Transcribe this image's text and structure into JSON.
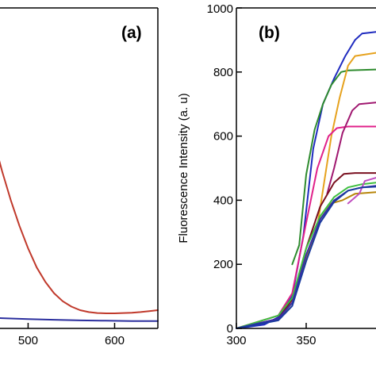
{
  "chart_data": [
    {
      "type": "line",
      "panel_label": "(a)",
      "xlabel": "",
      "ylabel": "",
      "xlim": [
        440,
        650
      ],
      "ylim": [
        0,
        1
      ],
      "x_ticks": [
        500,
        600
      ],
      "x_tick_labels": [
        "500",
        "600"
      ],
      "grid": false,
      "series": [
        {
          "color": "#c0392b",
          "points": [
            [
              440,
              0.8
            ],
            [
              450,
              0.7
            ],
            [
              460,
              0.59
            ],
            [
              470,
              0.49
            ],
            [
              480,
              0.4
            ],
            [
              490,
              0.32
            ],
            [
              500,
              0.25
            ],
            [
              510,
              0.19
            ],
            [
              520,
              0.145
            ],
            [
              530,
              0.11
            ],
            [
              540,
              0.085
            ],
            [
              550,
              0.068
            ],
            [
              560,
              0.057
            ],
            [
              570,
              0.051
            ],
            [
              580,
              0.048
            ],
            [
              590,
              0.047
            ],
            [
              600,
              0.047
            ],
            [
              610,
              0.048
            ],
            [
              620,
              0.049
            ],
            [
              630,
              0.051
            ],
            [
              640,
              0.054
            ],
            [
              650,
              0.057
            ]
          ]
        },
        {
          "color": "#2b2f9e",
          "points": [
            [
              440,
              0.035
            ],
            [
              470,
              0.032
            ],
            [
              500,
              0.029
            ],
            [
              530,
              0.027
            ],
            [
              560,
              0.025
            ],
            [
              590,
              0.024
            ],
            [
              620,
              0.023
            ],
            [
              650,
              0.023
            ]
          ]
        }
      ]
    },
    {
      "type": "line",
      "panel_label": "(b)",
      "xlabel": "",
      "ylabel": "Fluorescence Intensity (a. u)",
      "xlim": [
        300,
        400
      ],
      "ylim": [
        0,
        1000
      ],
      "x_ticks": [
        300,
        350
      ],
      "x_tick_labels": [
        "300",
        "350"
      ],
      "y_ticks": [
        0,
        200,
        400,
        600,
        800,
        1000
      ],
      "y_tick_labels": [
        "0",
        "200",
        "400",
        "600",
        "800",
        "1000"
      ],
      "grid": false,
      "series": [
        {
          "color": "#1f2bbf",
          "points": [
            [
              300,
              0
            ],
            [
              320,
              12
            ],
            [
              330,
              35
            ],
            [
              340,
              100
            ],
            [
              348,
              290
            ],
            [
              355,
              560
            ],
            [
              362,
              700
            ],
            [
              370,
              780
            ],
            [
              378,
              850
            ],
            [
              385,
              900
            ],
            [
              390,
              920
            ],
            [
              400,
              925
            ]
          ]
        },
        {
          "color": "#2e8b2e",
          "points": [
            [
              340,
              200
            ],
            [
              345,
              260
            ],
            [
              350,
              480
            ],
            [
              356,
              620
            ],
            [
              362,
              700
            ],
            [
              368,
              760
            ],
            [
              375,
              800
            ],
            [
              380,
              805
            ],
            [
              400,
              808
            ]
          ]
        },
        {
          "color": "#e6a21e",
          "points": [
            [
              358,
              320
            ],
            [
              363,
              460
            ],
            [
              368,
              600
            ],
            [
              374,
              720
            ],
            [
              380,
              820
            ],
            [
              385,
              850
            ],
            [
              400,
              860
            ]
          ]
        },
        {
          "color": "#e0218a",
          "points": [
            [
              300,
              0
            ],
            [
              330,
              40
            ],
            [
              340,
              110
            ],
            [
              350,
              330
            ],
            [
              358,
              500
            ],
            [
              366,
              600
            ],
            [
              372,
              625
            ],
            [
              380,
              630
            ],
            [
              400,
              630
            ]
          ]
        },
        {
          "color": "#a01870",
          "points": [
            [
              365,
              420
            ],
            [
              370,
              500
            ],
            [
              376,
              610
            ],
            [
              383,
              680
            ],
            [
              388,
              700
            ],
            [
              400,
              705
            ]
          ]
        },
        {
          "color": "#7a1020",
          "points": [
            [
              300,
              0
            ],
            [
              330,
              30
            ],
            [
              340,
              90
            ],
            [
              350,
              250
            ],
            [
              360,
              380
            ],
            [
              370,
              455
            ],
            [
              377,
              482
            ],
            [
              385,
              485
            ],
            [
              400,
              485
            ]
          ]
        },
        {
          "color": "#b8860b",
          "points": [
            [
              300,
              0
            ],
            [
              330,
              28
            ],
            [
              340,
              80
            ],
            [
              350,
              220
            ],
            [
              360,
              340
            ],
            [
              368,
              390
            ],
            [
              376,
              400
            ],
            [
              385,
              420
            ],
            [
              400,
              425
            ]
          ]
        },
        {
          "color": "#3fbf3f",
          "points": [
            [
              300,
              0
            ],
            [
              330,
              40
            ],
            [
              340,
              95
            ],
            [
              350,
              250
            ],
            [
              360,
              350
            ],
            [
              370,
              410
            ],
            [
              380,
              440
            ],
            [
              390,
              450
            ],
            [
              400,
              455
            ]
          ]
        },
        {
          "color": "#3a2fa8",
          "points": [
            [
              300,
              0
            ],
            [
              330,
              30
            ],
            [
              340,
              80
            ],
            [
              350,
              230
            ],
            [
              360,
              340
            ],
            [
              370,
              400
            ],
            [
              380,
              430
            ],
            [
              390,
              440
            ],
            [
              400,
              445
            ]
          ]
        },
        {
          "color": "#c04fc0",
          "points": [
            [
              380,
              390
            ],
            [
              384,
              405
            ],
            [
              388,
              420
            ],
            [
              392,
              460
            ],
            [
              400,
              470
            ]
          ]
        },
        {
          "color": "#1a3a9e",
          "points": [
            [
              300,
              0
            ],
            [
              330,
              25
            ],
            [
              340,
              70
            ],
            [
              350,
              210
            ],
            [
              360,
              330
            ],
            [
              370,
              395
            ],
            [
              380,
              430
            ],
            [
              390,
              440
            ],
            [
              400,
              442
            ]
          ]
        }
      ]
    }
  ]
}
